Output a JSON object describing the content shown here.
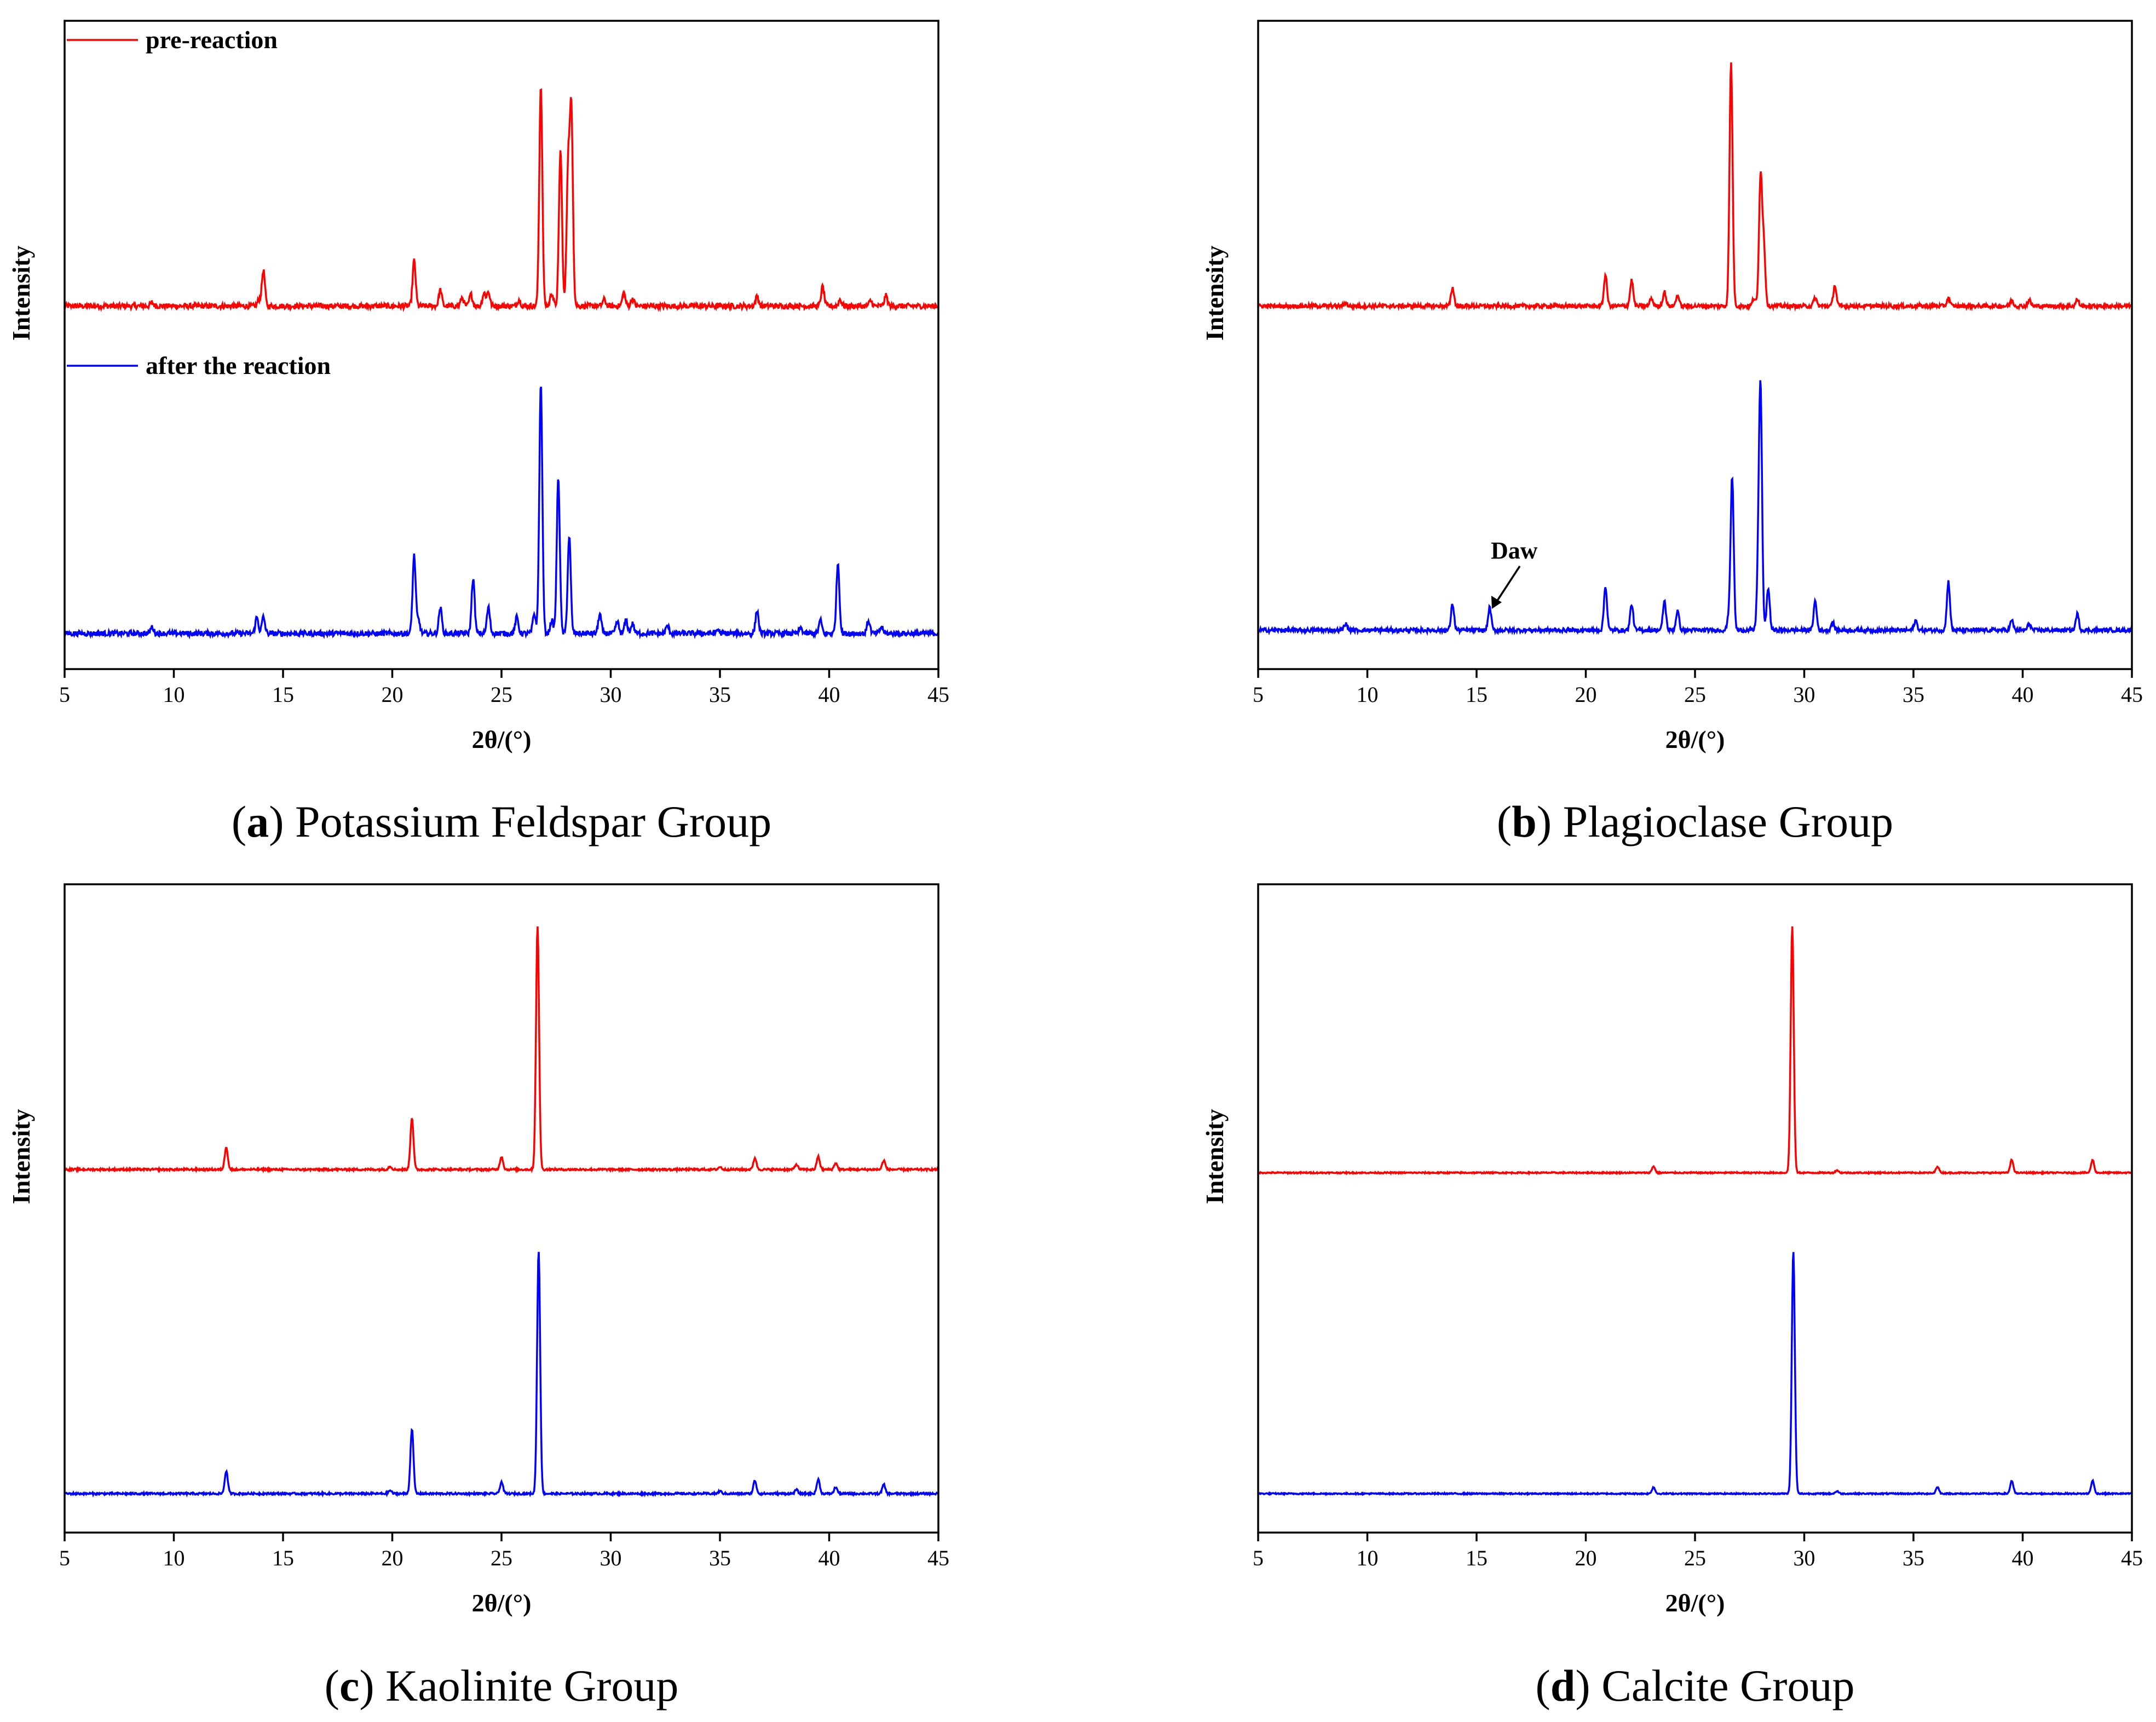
{
  "chart_data": [
    {
      "id": "a",
      "type": "line",
      "caption_letter": "a",
      "caption_text": "Potassium Feldspar Group",
      "xlabel": "2θ/(°)",
      "ylabel": "Intensity",
      "xlim": [
        5,
        45
      ],
      "xticks": [
        5,
        10,
        15,
        20,
        25,
        30,
        35,
        40,
        45
      ],
      "series": [
        {
          "name": "pre-reaction",
          "color": "#ff0000",
          "baseline": 0.56,
          "noise": 0.004,
          "peaks": [
            [
              9,
              0.005
            ],
            [
              13.9,
              0.01
            ],
            [
              14.1,
              0.055
            ],
            [
              21.0,
              0.07
            ],
            [
              22.2,
              0.025
            ],
            [
              23.2,
              0.013
            ],
            [
              23.6,
              0.018
            ],
            [
              24.2,
              0.02
            ],
            [
              24.4,
              0.022
            ],
            [
              25.8,
              0.01
            ],
            [
              26.8,
              0.34
            ],
            [
              27.3,
              0.02
            ],
            [
              27.7,
              0.24
            ],
            [
              28.05,
              0.21
            ],
            [
              28.2,
              0.295
            ],
            [
              29.7,
              0.01
            ],
            [
              30.6,
              0.02
            ],
            [
              31.0,
              0.012
            ],
            [
              36.7,
              0.015
            ],
            [
              39.7,
              0.03
            ],
            [
              40.5,
              0.01
            ],
            [
              41.9,
              0.008
            ],
            [
              42.6,
              0.016
            ]
          ]
        },
        {
          "name": "after the reaction",
          "color": "#0000ff",
          "baseline": 0.055,
          "noise": 0.004,
          "peaks": [
            [
              9.0,
              0.01
            ],
            [
              13.8,
              0.025
            ],
            [
              14.1,
              0.025
            ],
            [
              21.0,
              0.12
            ],
            [
              21.2,
              0.02
            ],
            [
              22.2,
              0.04
            ],
            [
              23.7,
              0.085
            ],
            [
              24.4,
              0.04
            ],
            [
              25.7,
              0.025
            ],
            [
              26.5,
              0.03
            ],
            [
              26.8,
              0.385
            ],
            [
              27.3,
              0.02
            ],
            [
              27.6,
              0.24
            ],
            [
              28.1,
              0.15
            ],
            [
              29.5,
              0.03
            ],
            [
              30.3,
              0.018
            ],
            [
              30.7,
              0.02
            ],
            [
              31.0,
              0.015
            ],
            [
              32.6,
              0.012
            ],
            [
              34.9,
              0.006
            ],
            [
              36.7,
              0.035
            ],
            [
              38.7,
              0.008
            ],
            [
              39.6,
              0.02
            ],
            [
              40.4,
              0.108
            ],
            [
              41.8,
              0.02
            ],
            [
              42.4,
              0.01
            ]
          ]
        }
      ],
      "annotations": []
    },
    {
      "id": "b",
      "type": "line",
      "caption_letter": "b",
      "caption_text": "Plagioclase Group",
      "xlabel": "2θ/(°)",
      "ylabel": "Intensity",
      "xlim": [
        5,
        45
      ],
      "xticks": [
        5,
        10,
        15,
        20,
        25,
        30,
        35,
        40,
        45
      ],
      "series": [
        {
          "name": "pre-reaction",
          "color": "#ff0000",
          "baseline": 0.56,
          "noise": 0.003,
          "peaks": [
            [
              9,
              0.005
            ],
            [
              13.9,
              0.028
            ],
            [
              20.9,
              0.048
            ],
            [
              22.1,
              0.04
            ],
            [
              23.0,
              0.012
            ],
            [
              23.6,
              0.022
            ],
            [
              24.2,
              0.017
            ],
            [
              26.65,
              0.375
            ],
            [
              27.7,
              0.012
            ],
            [
              28.0,
              0.2
            ],
            [
              28.15,
              0.09
            ],
            [
              30.5,
              0.013
            ],
            [
              31.4,
              0.032
            ],
            [
              36.6,
              0.012
            ],
            [
              39.5,
              0.009
            ],
            [
              40.3,
              0.009
            ],
            [
              42.5,
              0.01
            ]
          ]
        },
        {
          "name": "after the reaction",
          "color": "#0000ff",
          "baseline": 0.06,
          "noise": 0.003,
          "peaks": [
            [
              9,
              0.01
            ],
            [
              13.9,
              0.04
            ],
            [
              15.6,
              0.035
            ],
            [
              20.9,
              0.068
            ],
            [
              22.1,
              0.04
            ],
            [
              23.6,
              0.045
            ],
            [
              24.2,
              0.03
            ],
            [
              26.55,
              0.02
            ],
            [
              26.7,
              0.235
            ],
            [
              27.9,
              0.08
            ],
            [
              28.0,
              0.355
            ],
            [
              28.35,
              0.065
            ],
            [
              30.5,
              0.045
            ],
            [
              31.3,
              0.012
            ],
            [
              35.1,
              0.015
            ],
            [
              36.6,
              0.075
            ],
            [
              39.5,
              0.015
            ],
            [
              40.3,
              0.01
            ],
            [
              42.5,
              0.025
            ]
          ]
        }
      ],
      "annotations": [
        {
          "text": "Daw",
          "x": 15.6
        }
      ]
    },
    {
      "id": "c",
      "type": "line",
      "caption_letter": "c",
      "caption_text": "Kaolinite Group",
      "xlabel": "2θ/(°)",
      "ylabel": "Intensity",
      "xlim": [
        5,
        45
      ],
      "xticks": [
        5,
        10,
        15,
        20,
        25,
        30,
        35,
        40,
        45
      ],
      "series": [
        {
          "name": "pre-reaction",
          "color": "#ff0000",
          "baseline": 0.56,
          "noise": 0.0015,
          "peaks": [
            [
              12.4,
              0.035
            ],
            [
              19.9,
              0.005
            ],
            [
              20.9,
              0.08
            ],
            [
              25.0,
              0.02
            ],
            [
              26.65,
              0.375
            ],
            [
              35.0,
              0.004
            ],
            [
              36.6,
              0.018
            ],
            [
              38.5,
              0.008
            ],
            [
              39.5,
              0.02
            ],
            [
              40.3,
              0.01
            ],
            [
              42.5,
              0.014
            ]
          ]
        },
        {
          "name": "after the reaction",
          "color": "#0000ff",
          "baseline": 0.06,
          "noise": 0.0015,
          "peaks": [
            [
              12.4,
              0.035
            ],
            [
              19.9,
              0.005
            ],
            [
              20.9,
              0.1
            ],
            [
              25.0,
              0.018
            ],
            [
              26.7,
              0.375
            ],
            [
              35.0,
              0.004
            ],
            [
              36.6,
              0.02
            ],
            [
              38.5,
              0.006
            ],
            [
              39.5,
              0.022
            ],
            [
              40.3,
              0.01
            ],
            [
              42.5,
              0.014
            ]
          ]
        }
      ],
      "annotations": []
    },
    {
      "id": "d",
      "type": "line",
      "caption_letter": "d",
      "caption_text": "Calcite Group",
      "xlabel": "2θ/(°)",
      "ylabel": "Intensity",
      "xlim": [
        5,
        45
      ],
      "xticks": [
        5,
        10,
        15,
        20,
        25,
        30,
        35,
        40,
        45
      ],
      "series": [
        {
          "name": "pre-reaction",
          "color": "#ff0000",
          "baseline": 0.555,
          "noise": 0.001,
          "peaks": [
            [
              23.1,
              0.01
            ],
            [
              29.45,
              0.38
            ],
            [
              31.5,
              0.004
            ],
            [
              36.1,
              0.01
            ],
            [
              39.5,
              0.02
            ],
            [
              43.2,
              0.02
            ]
          ]
        },
        {
          "name": "after the reaction",
          "color": "#0000ff",
          "baseline": 0.06,
          "noise": 0.001,
          "peaks": [
            [
              23.1,
              0.01
            ],
            [
              29.5,
              0.375
            ],
            [
              31.5,
              0.004
            ],
            [
              36.1,
              0.01
            ],
            [
              39.5,
              0.02
            ],
            [
              43.2,
              0.02
            ]
          ]
        }
      ],
      "annotations": []
    }
  ]
}
